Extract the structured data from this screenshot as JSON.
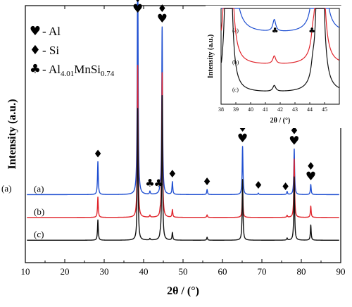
{
  "chart_data": {
    "type": "line",
    "xlabel": "2θ / (°)",
    "ylabel": "Intensity (a.u.)",
    "xlim": [
      10,
      90
    ],
    "xticks": [
      10,
      20,
      30,
      40,
      50,
      60,
      70,
      80,
      90
    ],
    "yticks_shown": false,
    "legend": [
      {
        "symbol": "♥",
        "label": "- Al"
      },
      {
        "symbol": "♦",
        "label": "- Si"
      },
      {
        "symbol": "♣",
        "label": "- Al",
        "sub1": "4.01",
        "label2": "MnSi",
        "sub2": "0.74"
      }
    ],
    "outside_label": "(a)",
    "series": [
      {
        "name": "(a)",
        "color": "#1f4fd1",
        "baseline": 0.26,
        "peaks": [
          {
            "x": 28.4,
            "h": 0.13
          },
          {
            "x": 38.5,
            "h": 1.0
          },
          {
            "x": 41.6,
            "h": 0.012
          },
          {
            "x": 44.2,
            "h": 0.02
          },
          {
            "x": 44.7,
            "h": 0.66
          },
          {
            "x": 47.3,
            "h": 0.05
          },
          {
            "x": 56.1,
            "h": 0.02
          },
          {
            "x": 65.1,
            "h": 0.19
          },
          {
            "x": 69.1,
            "h": 0.006
          },
          {
            "x": 76.4,
            "h": 0.012
          },
          {
            "x": 78.2,
            "h": 0.18
          },
          {
            "x": 82.4,
            "h": 0.04
          }
        ]
      },
      {
        "name": "(b)",
        "color": "#e0262d",
        "baseline": 0.17,
        "peaks": [
          {
            "x": 28.4,
            "h": 0.08
          },
          {
            "x": 38.5,
            "h": 0.6
          },
          {
            "x": 41.6,
            "h": 0.008
          },
          {
            "x": 44.2,
            "h": 0.012
          },
          {
            "x": 44.7,
            "h": 0.57
          },
          {
            "x": 47.3,
            "h": 0.03
          },
          {
            "x": 56.1,
            "h": 0.01
          },
          {
            "x": 65.1,
            "h": 0.11
          },
          {
            "x": 76.4,
            "h": 0.008
          },
          {
            "x": 78.2,
            "h": 0.23
          },
          {
            "x": 82.4,
            "h": 0.045
          }
        ]
      },
      {
        "name": "(c)",
        "color": "#111111",
        "baseline": 0.08,
        "peaks": [
          {
            "x": 28.4,
            "h": 0.08
          },
          {
            "x": 38.5,
            "h": 0.52
          },
          {
            "x": 41.6,
            "h": 0.006
          },
          {
            "x": 44.2,
            "h": 0.01
          },
          {
            "x": 44.7,
            "h": 0.57
          },
          {
            "x": 47.3,
            "h": 0.03
          },
          {
            "x": 56.1,
            "h": 0.012
          },
          {
            "x": 65.1,
            "h": 0.24
          },
          {
            "x": 76.4,
            "h": 0.008
          },
          {
            "x": 78.2,
            "h": 0.25
          },
          {
            "x": 82.4,
            "h": 0.06
          }
        ]
      }
    ],
    "annotations": [
      {
        "x": 28.4,
        "symbols": [
          "♦"
        ]
      },
      {
        "x": 38.5,
        "symbols": [
          "♦",
          "♥"
        ]
      },
      {
        "x": 41.6,
        "symbols": [
          "♣"
        ]
      },
      {
        "x": 43.8,
        "symbols": [
          "♣"
        ]
      },
      {
        "x": 44.7,
        "symbols": [
          "♦",
          "♥"
        ]
      },
      {
        "x": 47.3,
        "symbols": [
          "♦"
        ]
      },
      {
        "x": 56.1,
        "symbols": [
          "♦"
        ]
      },
      {
        "x": 65.1,
        "symbols": [
          "♦",
          "♥"
        ]
      },
      {
        "x": 69.1,
        "symbols": [
          "♦"
        ]
      },
      {
        "x": 76.0,
        "symbols": [
          "♦"
        ]
      },
      {
        "x": 78.2,
        "symbols": [
          "♦",
          "♥"
        ]
      },
      {
        "x": 82.4,
        "symbols": [
          "♦",
          "♥"
        ]
      }
    ],
    "inset": {
      "xlim": [
        38,
        46
      ],
      "xticks": [
        38,
        39,
        40,
        41,
        42,
        43,
        44,
        45
      ],
      "xlabel": "2θ / (°)",
      "ylabel": "Intensity (a.u.)",
      "trace_labels": [
        "(a)",
        "(b)",
        "(c)"
      ],
      "annotations": [
        {
          "x": 41.65,
          "symbol": "♣"
        },
        {
          "x": 44.15,
          "symbol": "♣"
        }
      ]
    }
  }
}
